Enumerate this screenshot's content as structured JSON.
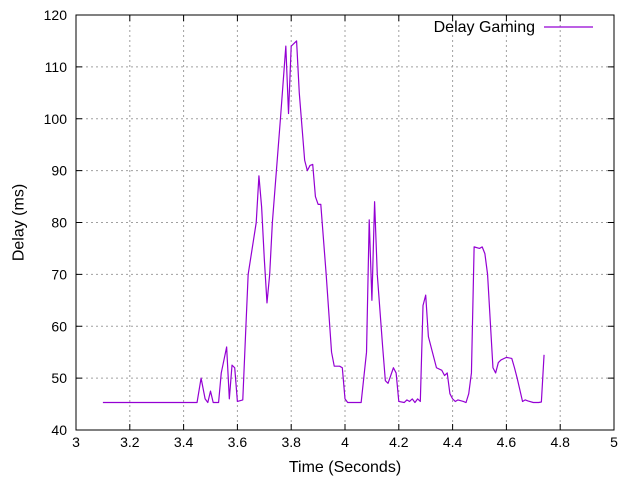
{
  "chart_data": {
    "type": "line",
    "title": "",
    "xlabel": "Time (Seconds)",
    "ylabel": "Delay (ms)",
    "xlim": [
      3,
      5
    ],
    "ylim": [
      40,
      120
    ],
    "xticks": [
      3,
      3.2,
      3.4,
      3.6,
      3.8,
      4,
      4.2,
      4.4,
      4.6,
      4.8,
      5
    ],
    "xtick_labels": [
      "3",
      "3.2",
      "3.4",
      "3.6",
      "3.8",
      "4",
      "4.2",
      "4.4",
      "4.6",
      "4.8",
      "5"
    ],
    "yticks": [
      40,
      50,
      60,
      70,
      80,
      90,
      100,
      110,
      120
    ],
    "ytick_labels": [
      "40",
      "50",
      "60",
      "70",
      "80",
      "90",
      "100",
      "110",
      "120"
    ],
    "grid": true,
    "legend_position": "top-right",
    "series": [
      {
        "name": "Delay Gaming",
        "color": "#9400d3",
        "points": [
          [
            3.1,
            45.3
          ],
          [
            3.45,
            45.3
          ],
          [
            3.465,
            50.0
          ],
          [
            3.48,
            46.0
          ],
          [
            3.49,
            45.3
          ],
          [
            3.5,
            47.5
          ],
          [
            3.51,
            45.3
          ],
          [
            3.53,
            45.3
          ],
          [
            3.54,
            51.0
          ],
          [
            3.56,
            56.0
          ],
          [
            3.57,
            46.0
          ],
          [
            3.58,
            52.5
          ],
          [
            3.59,
            52.0
          ],
          [
            3.6,
            45.5
          ],
          [
            3.62,
            45.8
          ],
          [
            3.63,
            58.0
          ],
          [
            3.64,
            70.0
          ],
          [
            3.67,
            80.0
          ],
          [
            3.68,
            89.0
          ],
          [
            3.69,
            83.0
          ],
          [
            3.7,
            73.0
          ],
          [
            3.71,
            64.5
          ],
          [
            3.72,
            70.0
          ],
          [
            3.73,
            80.0
          ],
          [
            3.76,
            100.0
          ],
          [
            3.77,
            107.0
          ],
          [
            3.78,
            114.0
          ],
          [
            3.79,
            101.0
          ],
          [
            3.8,
            114.0
          ],
          [
            3.81,
            114.5
          ],
          [
            3.82,
            115.0
          ],
          [
            3.83,
            105.0
          ],
          [
            3.85,
            92.0
          ],
          [
            3.86,
            90.0
          ],
          [
            3.87,
            91.0
          ],
          [
            3.88,
            91.2
          ],
          [
            3.89,
            85.0
          ],
          [
            3.9,
            83.5
          ],
          [
            3.91,
            83.5
          ],
          [
            3.93,
            70.0
          ],
          [
            3.95,
            55.0
          ],
          [
            3.96,
            52.3
          ],
          [
            3.98,
            52.3
          ],
          [
            3.99,
            52.0
          ],
          [
            4.0,
            46.0
          ],
          [
            4.01,
            45.3
          ],
          [
            4.06,
            45.3
          ],
          [
            4.08,
            55.0
          ],
          [
            4.09,
            80.5
          ],
          [
            4.1,
            65.0
          ],
          [
            4.11,
            84.0
          ],
          [
            4.12,
            70.0
          ],
          [
            4.14,
            56.0
          ],
          [
            4.15,
            49.5
          ],
          [
            4.16,
            49.0
          ],
          [
            4.17,
            50.5
          ],
          [
            4.18,
            52.0
          ],
          [
            4.19,
            51.0
          ],
          [
            4.2,
            45.5
          ],
          [
            4.22,
            45.3
          ],
          [
            4.23,
            45.8
          ],
          [
            4.24,
            45.5
          ],
          [
            4.25,
            46.0
          ],
          [
            4.26,
            45.3
          ],
          [
            4.27,
            46.0
          ],
          [
            4.28,
            45.5
          ],
          [
            4.29,
            64.0
          ],
          [
            4.3,
            66.0
          ],
          [
            4.31,
            58.0
          ],
          [
            4.33,
            54.0
          ],
          [
            4.34,
            52.0
          ],
          [
            4.36,
            51.5
          ],
          [
            4.37,
            50.5
          ],
          [
            4.38,
            51.0
          ],
          [
            4.39,
            47.0
          ],
          [
            4.4,
            46.0
          ],
          [
            4.41,
            45.5
          ],
          [
            4.42,
            45.8
          ],
          [
            4.44,
            45.5
          ],
          [
            4.45,
            45.3
          ],
          [
            4.46,
            47.0
          ],
          [
            4.47,
            51.0
          ],
          [
            4.48,
            75.3
          ],
          [
            4.5,
            75.0
          ],
          [
            4.51,
            75.3
          ],
          [
            4.52,
            74.0
          ],
          [
            4.53,
            70.0
          ],
          [
            4.55,
            52.0
          ],
          [
            4.56,
            51.0
          ],
          [
            4.57,
            53.0
          ],
          [
            4.58,
            53.5
          ],
          [
            4.6,
            54.0
          ],
          [
            4.62,
            53.8
          ],
          [
            4.63,
            52.0
          ],
          [
            4.64,
            50.0
          ],
          [
            4.66,
            45.5
          ],
          [
            4.67,
            45.8
          ],
          [
            4.68,
            45.6
          ],
          [
            4.7,
            45.3
          ],
          [
            4.72,
            45.3
          ],
          [
            4.73,
            45.4
          ],
          [
            4.74,
            54.5
          ]
        ]
      }
    ]
  }
}
